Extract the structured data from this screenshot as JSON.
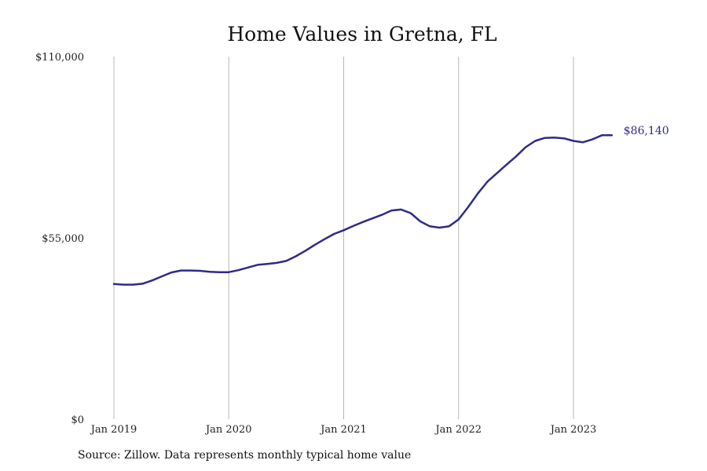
{
  "chart_data": {
    "type": "line",
    "title": "Home Values in Gretna, FL",
    "xlabel": "",
    "ylabel": "",
    "ylim": [
      0,
      110000
    ],
    "yticks": [
      {
        "value": 0,
        "label": "$0"
      },
      {
        "value": 55000,
        "label": "$55,000"
      },
      {
        "value": 110000,
        "label": "$110,000"
      }
    ],
    "xlim": [
      "2019-01",
      "2023-12"
    ],
    "xticks": [
      {
        "value": "2019-01",
        "label": "Jan 2019"
      },
      {
        "value": "2020-01",
        "label": "Jan 2020"
      },
      {
        "value": "2021-01",
        "label": "Jan 2021"
      },
      {
        "value": "2022-01",
        "label": "Jan 2022"
      },
      {
        "value": "2023-01",
        "label": "Jan 2023"
      }
    ],
    "grid": {
      "vertical": true,
      "horizontal": false
    },
    "line_color": "#2e2a8c",
    "end_label": "$86,140",
    "series": [
      {
        "x": [
          "2019-01",
          "2019-02",
          "2019-03",
          "2019-04",
          "2019-05",
          "2019-06",
          "2019-07",
          "2019-08",
          "2019-09",
          "2019-10",
          "2019-11",
          "2019-12",
          "2020-01",
          "2020-02",
          "2020-03",
          "2020-04",
          "2020-05",
          "2020-06",
          "2020-07",
          "2020-08",
          "2020-09",
          "2020-10",
          "2020-11",
          "2020-12",
          "2021-01",
          "2021-02",
          "2021-03",
          "2021-04",
          "2021-05",
          "2021-06",
          "2021-07",
          "2021-08",
          "2021-09",
          "2021-10",
          "2021-11",
          "2021-12",
          "2022-01",
          "2022-02",
          "2022-03",
          "2022-04",
          "2022-05",
          "2022-06",
          "2022-07",
          "2022-08",
          "2022-09",
          "2022-10",
          "2022-11",
          "2022-12",
          "2023-01",
          "2023-02",
          "2023-03",
          "2023-04",
          "2023-05"
        ],
        "values": [
          41000,
          40800,
          40800,
          41100,
          42100,
          43300,
          44500,
          45100,
          45100,
          45000,
          44700,
          44600,
          44600,
          45200,
          46000,
          46800,
          47100,
          47400,
          48000,
          49400,
          51100,
          52900,
          54600,
          56200,
          57300,
          58600,
          59800,
          60900,
          62000,
          63300,
          63600,
          62500,
          60000,
          58500,
          58100,
          58500,
          60600,
          64300,
          68400,
          72000,
          74600,
          77200,
          79700,
          82500,
          84400,
          85300,
          85400,
          85200,
          84400,
          84000,
          84900,
          86140,
          86140
        ]
      }
    ]
  },
  "source": "Source: Zillow. Data represents monthly typical home value"
}
